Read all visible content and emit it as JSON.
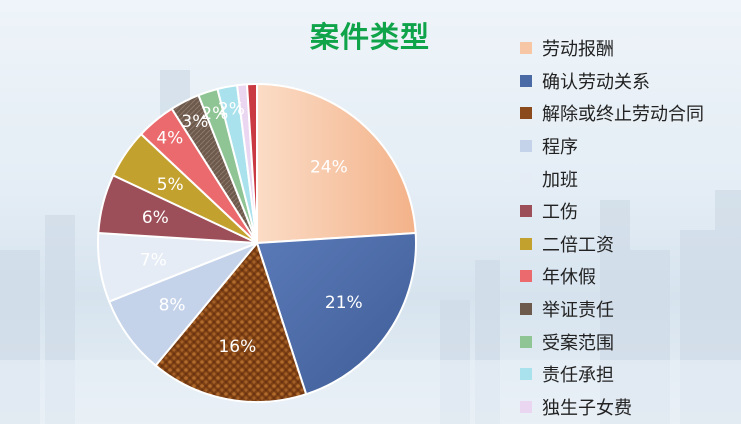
{
  "chart_data": {
    "type": "pie",
    "title": "案件类型",
    "slices": [
      {
        "label": "劳动报酬",
        "value": 24,
        "display": "24%",
        "color": "#f7c6a5"
      },
      {
        "label": "确认劳动关系",
        "value": 21,
        "display": "21%",
        "color": "#4a6aa5"
      },
      {
        "label": "解除或终止劳动合同",
        "value": 16,
        "display": "16%",
        "color": "#8a4a1c"
      },
      {
        "label": "程序",
        "value": 8,
        "display": "8%",
        "color": "#c5d3ea"
      },
      {
        "label": "加班",
        "value": 7,
        "display": "7%",
        "color": "#e5ecf5"
      },
      {
        "label": "工伤",
        "value": 6,
        "display": "6%",
        "color": "#9c4f58"
      },
      {
        "label": "二倍工资",
        "value": 5,
        "display": "5%",
        "color": "#c3a12e"
      },
      {
        "label": "年休假",
        "value": 4,
        "display": "4%",
        "color": "#ea6a6d"
      },
      {
        "label": "举证责任",
        "value": 3,
        "display": "3%",
        "color": "#6e5a4c"
      },
      {
        "label": "受案范围",
        "value": 2,
        "display": "2%",
        "color": "#8fc494"
      },
      {
        "label": "责任承担",
        "value": 2,
        "display": "2%",
        "color": "#a9e2ec"
      },
      {
        "label": "独生子女费",
        "value": 1,
        "display": "",
        "color": "#ead6f0"
      },
      {
        "label": "",
        "value": 1,
        "display": "",
        "color": "#c93a43"
      }
    ],
    "legend_position": "right"
  }
}
